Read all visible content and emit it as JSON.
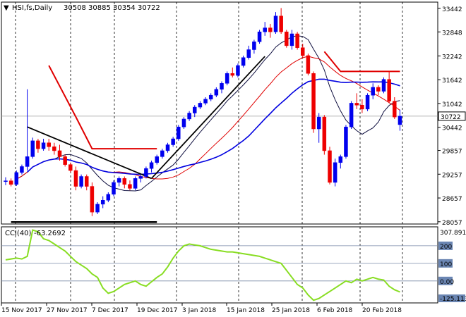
{
  "chart_data": [
    {
      "type": "candlestick",
      "title": "HSI,fs,Daily",
      "ohlc_label": "30508 30885 30354 30722",
      "y_ticks": [
        "33442",
        "32848",
        "32242",
        "31642",
        "31042",
        "30442",
        "29857",
        "29257",
        "28657",
        "28057"
      ],
      "current_price": 30722,
      "x_labels": [
        "15 Nov 2017",
        "27 Nov 2017",
        "7 Dec 2017",
        "19 Dec 2017",
        "3 Jan 2018",
        "15 Jan 2018",
        "25 Jan 2018",
        "6 Feb 2018",
        "20 Feb 2018"
      ],
      "ylim": [
        28000,
        33600
      ],
      "candles": [
        [
          29070,
          29180,
          28980,
          29090
        ],
        [
          29090,
          29150,
          28950,
          29000
        ],
        [
          29000,
          29350,
          28960,
          29300
        ],
        [
          29300,
          29500,
          29250,
          29450
        ],
        [
          29450,
          31400,
          29350,
          29700
        ],
        [
          29700,
          30180,
          29650,
          30100
        ],
        [
          30100,
          30150,
          29800,
          29900
        ],
        [
          29900,
          30150,
          29850,
          30050
        ],
        [
          30050,
          30150,
          29850,
          29950
        ],
        [
          29950,
          30050,
          29750,
          29850
        ],
        [
          29850,
          30000,
          29600,
          29700
        ],
        [
          29700,
          29750,
          29450,
          29500
        ],
        [
          29500,
          29550,
          29300,
          29350
        ],
        [
          29350,
          29450,
          28850,
          28950
        ],
        [
          28950,
          29250,
          28900,
          29200
        ],
        [
          29200,
          29250,
          28850,
          28950
        ],
        [
          28950,
          29050,
          28200,
          28300
        ],
        [
          28300,
          28550,
          28250,
          28500
        ],
        [
          28500,
          28700,
          28400,
          28600
        ],
        [
          28600,
          28800,
          28550,
          28750
        ],
        [
          28750,
          29100,
          28700,
          29050
        ],
        [
          29050,
          29200,
          28950,
          29150
        ],
        [
          29150,
          29200,
          28900,
          29000
        ],
        [
          29000,
          29100,
          28850,
          28900
        ],
        [
          28900,
          29200,
          28850,
          29150
        ],
        [
          29150,
          29250,
          29050,
          29200
        ],
        [
          29200,
          29450,
          29150,
          29400
        ],
        [
          29400,
          29600,
          29300,
          29550
        ],
        [
          29550,
          29750,
          29500,
          29700
        ],
        [
          29700,
          29900,
          29650,
          29850
        ],
        [
          29850,
          30050,
          29800,
          30000
        ],
        [
          30000,
          30200,
          29950,
          30150
        ],
        [
          30150,
          30500,
          30100,
          30450
        ],
        [
          30450,
          30700,
          30400,
          30650
        ],
        [
          30650,
          30850,
          30600,
          30800
        ],
        [
          30800,
          31000,
          30700,
          30950
        ],
        [
          30950,
          31100,
          30900,
          31050
        ],
        [
          31050,
          31200,
          31000,
          31150
        ],
        [
          31150,
          31300,
          31100,
          31250
        ],
        [
          31250,
          31450,
          31200,
          31400
        ],
        [
          31400,
          31600,
          31300,
          31550
        ],
        [
          31550,
          31850,
          31500,
          31800
        ],
        [
          31800,
          31950,
          31700,
          31750
        ],
        [
          31750,
          32050,
          31700,
          32000
        ],
        [
          32000,
          32250,
          31950,
          32200
        ],
        [
          32200,
          32500,
          32150,
          32400
        ],
        [
          32400,
          32650,
          32300,
          32600
        ],
        [
          32600,
          32900,
          32550,
          32850
        ],
        [
          32850,
          33100,
          32750,
          32950
        ],
        [
          32950,
          33050,
          32700,
          32850
        ],
        [
          32850,
          33350,
          32800,
          33250
        ],
        [
          33250,
          33450,
          32800,
          32850
        ],
        [
          32850,
          32900,
          32450,
          32500
        ],
        [
          32500,
          32900,
          32400,
          32800
        ],
        [
          32800,
          32850,
          32400,
          32450
        ],
        [
          32450,
          32550,
          32200,
          32250
        ],
        [
          32250,
          32300,
          31750,
          31800
        ],
        [
          31800,
          31850,
          30300,
          30400
        ],
        [
          30400,
          30800,
          30050,
          30700
        ],
        [
          30700,
          30750,
          29750,
          29850
        ],
        [
          29850,
          29950,
          29000,
          29050
        ],
        [
          29050,
          29650,
          28950,
          29550
        ],
        [
          29550,
          29750,
          29400,
          29700
        ],
        [
          29700,
          30500,
          29650,
          30450
        ],
        [
          30450,
          31100,
          30400,
          31050
        ],
        [
          31050,
          31300,
          30900,
          31000
        ],
        [
          31000,
          31150,
          30800,
          30900
        ],
        [
          30900,
          31300,
          30850,
          31250
        ],
        [
          31250,
          31550,
          31150,
          31450
        ],
        [
          31450,
          31500,
          31250,
          31350
        ],
        [
          31350,
          31700,
          31300,
          31650
        ],
        [
          31650,
          31850,
          31050,
          31100
        ],
        [
          31100,
          31200,
          30650,
          30700
        ],
        [
          30508,
          30885,
          30354,
          30722
        ]
      ],
      "cci": {
        "label": "CCI(40)",
        "value_label": "-63.2692",
        "levels": [
          200,
          100,
          0
        ],
        "level_labels": [
          "200",
          "100",
          "0.00"
        ],
        "max_label": "307.8919",
        "min_label": "-125.113",
        "ylim": [
          -125.113,
          307.8919
        ],
        "values": [
          120,
          125,
          130,
          125,
          140,
          290,
          280,
          240,
          230,
          210,
          190,
          170,
          140,
          110,
          90,
          70,
          40,
          20,
          -40,
          -70,
          -60,
          -40,
          -20,
          -10,
          0,
          -20,
          -30,
          -5,
          20,
          40,
          80,
          130,
          170,
          200,
          210,
          205,
          200,
          190,
          180,
          175,
          170,
          165,
          165,
          160,
          155,
          150,
          145,
          140,
          130,
          120,
          110,
          100,
          60,
          20,
          -20,
          -40,
          -80,
          -110,
          -100,
          -80,
          -60,
          -40,
          -20,
          0,
          -10,
          10,
          0,
          10,
          20,
          10,
          5,
          -30,
          -50,
          -63
        ]
      }
    }
  ]
}
